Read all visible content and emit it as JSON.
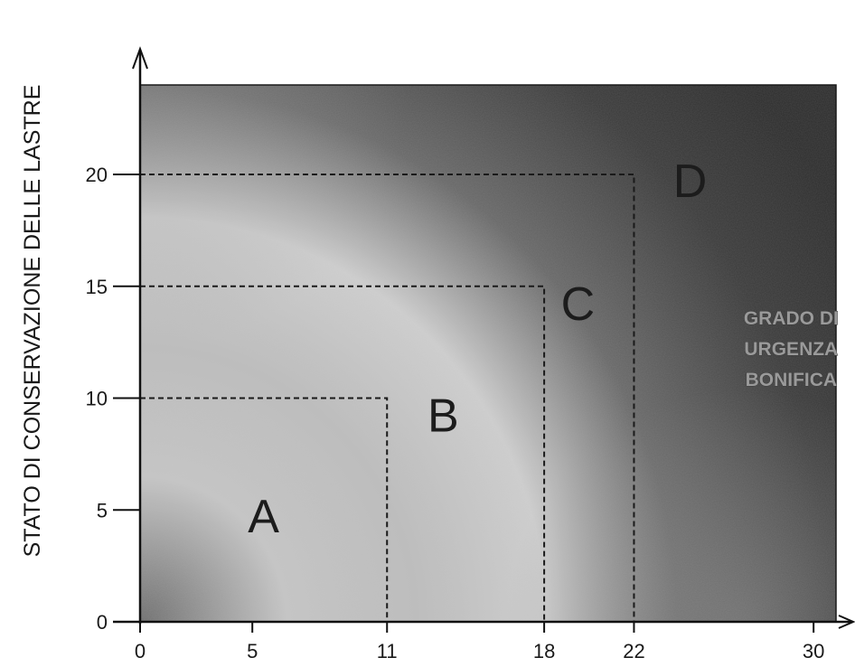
{
  "chart_data": {
    "type": "area",
    "ylabel": "STATO DI CONSERVAZIONE DELLE LASTRE",
    "xlabel": "",
    "xlim": [
      0,
      31
    ],
    "ylim": [
      0,
      24
    ],
    "x_ticks": [
      0,
      5,
      11,
      18,
      22,
      30
    ],
    "y_ticks": [
      0,
      5,
      10,
      15,
      20
    ],
    "grid": false,
    "zones": [
      {
        "label": "A",
        "x_max": 11,
        "y_max": 10
      },
      {
        "label": "B",
        "x_max": 18,
        "y_max": 15
      },
      {
        "label": "C",
        "x_max": 22,
        "y_max": 20
      },
      {
        "label": "D",
        "x_max": null,
        "y_max": null
      }
    ],
    "zone_label_positions": [
      {
        "label": "A",
        "x": 5.5,
        "y": 4
      },
      {
        "label": "B",
        "x": 13.5,
        "y": 8.5
      },
      {
        "label": "C",
        "x": 19.5,
        "y": 13.5
      },
      {
        "label": "D",
        "x": 24.5,
        "y": 19
      }
    ],
    "annotation": {
      "lines": [
        "GRADO DI",
        "URGENZA",
        "BONIFICA"
      ],
      "x": 29,
      "y": 13.3
    },
    "colors": {
      "background_dark": "#2e2e2e",
      "background_light": "#d2d2d2",
      "dashed_line": "#1a1a1a",
      "axis": "#111111"
    }
  }
}
